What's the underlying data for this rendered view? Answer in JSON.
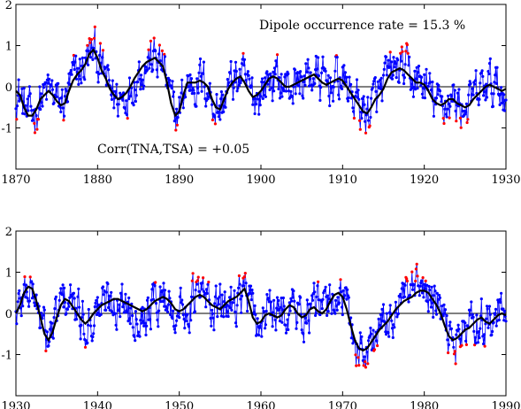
{
  "chart_data": [
    {
      "type": "line",
      "title": "",
      "xlabel": "",
      "ylabel": "",
      "xlim": [
        1870,
        1930
      ],
      "ylim": [
        -2,
        2
      ],
      "x_ticks": [
        1870,
        1880,
        1890,
        1900,
        1910,
        1920,
        1930
      ],
      "y_ticks": [
        -1,
        0,
        1,
        2
      ],
      "zero_line": true,
      "annotations": [
        {
          "text": "Dipole occurrence rate = 15.3 %"
        },
        {
          "text": "Corr(TNA,TSA) = +0.05"
        }
      ],
      "colors": {
        "raw_series": "#0000ff",
        "dipole_points": "#ff0000",
        "smoothed": "#000000"
      },
      "series": [
        {
          "role": "smoothed",
          "x": [
            1870,
            1870.5,
            1871,
            1871.5,
            1872,
            1872.5,
            1873,
            1873.5,
            1874,
            1874.5,
            1875,
            1875.5,
            1876,
            1876.5,
            1877,
            1877.5,
            1878,
            1878.5,
            1879,
            1879.5,
            1880,
            1880.5,
            1881,
            1881.5,
            1882,
            1882.5,
            1883,
            1883.5,
            1884,
            1884.5,
            1885,
            1885.5,
            1886,
            1886.5,
            1887,
            1887.5,
            1888,
            1888.5,
            1889,
            1889.5,
            1890,
            1890.5,
            1891,
            1891.5,
            1892,
            1892.5,
            1893,
            1893.5,
            1894,
            1894.5,
            1895,
            1895.5,
            1896,
            1896.5,
            1897,
            1897.5,
            1898,
            1898.5,
            1899,
            1899.5,
            1900,
            1900.5,
            1901,
            1901.5,
            1902,
            1902.5,
            1903,
            1903.5,
            1904,
            1904.5,
            1905,
            1905.5,
            1906,
            1906.5,
            1907,
            1907.5,
            1908,
            1908.5,
            1909,
            1909.5,
            1910,
            1910.5,
            1911,
            1911.5,
            1912,
            1912.5,
            1913,
            1913.5,
            1914,
            1914.5,
            1915,
            1915.5,
            1916,
            1916.5,
            1917,
            1917.5,
            1918,
            1918.5,
            1919,
            1919.5,
            1920,
            1920.5,
            1921,
            1921.5,
            1922,
            1922.5,
            1923,
            1923.5,
            1924,
            1924.5,
            1925,
            1925.5,
            1926,
            1926.5,
            1927,
            1927.5,
            1928,
            1928.5,
            1929,
            1929.5,
            1930
          ],
          "y": [
            -0.1,
            -0.2,
            -0.5,
            -0.7,
            -0.7,
            -0.55,
            -0.3,
            -0.2,
            -0.1,
            -0.2,
            -0.35,
            -0.45,
            -0.4,
            -0.1,
            0.15,
            0.3,
            0.4,
            0.55,
            0.8,
            0.9,
            0.7,
            0.4,
            0.2,
            -0.05,
            -0.2,
            -0.3,
            -0.25,
            -0.15,
            0.0,
            0.2,
            0.35,
            0.5,
            0.6,
            0.65,
            0.7,
            0.6,
            0.5,
            0.1,
            -0.4,
            -0.7,
            -0.6,
            -0.2,
            0.1,
            0.1,
            0.1,
            0.15,
            0.1,
            0.0,
            -0.3,
            -0.5,
            -0.55,
            -0.3,
            -0.05,
            0.1,
            0.2,
            0.25,
            0.1,
            -0.1,
            -0.25,
            -0.2,
            -0.1,
            0.05,
            0.2,
            0.25,
            0.2,
            0.1,
            0.0,
            0.0,
            0.05,
            0.1,
            0.15,
            0.2,
            0.25,
            0.3,
            0.2,
            0.1,
            0.05,
            0.1,
            0.15,
            0.2,
            0.15,
            0.0,
            -0.15,
            -0.3,
            -0.45,
            -0.6,
            -0.65,
            -0.5,
            -0.3,
            -0.2,
            -0.05,
            0.2,
            0.35,
            0.4,
            0.45,
            0.4,
            0.3,
            0.2,
            0.1,
            0.1,
            0.05,
            -0.1,
            -0.3,
            -0.4,
            -0.45,
            -0.4,
            -0.3,
            -0.3,
            -0.4,
            -0.45,
            -0.5,
            -0.45,
            -0.3,
            -0.2,
            -0.1,
            0.0,
            0.05,
            0.0,
            -0.05,
            -0.1,
            -0.05
          ]
        }
      ]
    },
    {
      "type": "line",
      "title": "",
      "xlabel": "",
      "ylabel": "",
      "xlim": [
        1930,
        1990
      ],
      "ylim": [
        -2,
        2
      ],
      "x_ticks": [
        1930,
        1940,
        1950,
        1960,
        1970,
        1980,
        1990
      ],
      "y_ticks": [
        -1,
        0,
        1,
        2
      ],
      "zero_line": true,
      "annotations": [],
      "colors": {
        "raw_series": "#0000ff",
        "dipole_points": "#ff0000",
        "smoothed": "#000000"
      },
      "series": [
        {
          "role": "smoothed",
          "x": [
            1930,
            1930.5,
            1931,
            1931.5,
            1932,
            1932.5,
            1933,
            1933.5,
            1934,
            1934.5,
            1935,
            1935.5,
            1936,
            1936.5,
            1937,
            1937.5,
            1938,
            1938.5,
            1939,
            1939.5,
            1940,
            1940.5,
            1941,
            1941.5,
            1942,
            1942.5,
            1943,
            1943.5,
            1944,
            1944.5,
            1945,
            1945.5,
            1946,
            1946.5,
            1947,
            1947.5,
            1948,
            1948.5,
            1949,
            1949.5,
            1950,
            1950.5,
            1951,
            1951.5,
            1952,
            1952.5,
            1953,
            1953.5,
            1954,
            1954.5,
            1955,
            1955.5,
            1956,
            1956.5,
            1957,
            1957.5,
            1958,
            1958.5,
            1959,
            1959.5,
            1960,
            1960.5,
            1961,
            1961.5,
            1962,
            1962.5,
            1963,
            1963.5,
            1964,
            1964.5,
            1965,
            1965.5,
            1966,
            1966.5,
            1967,
            1967.5,
            1968,
            1968.5,
            1969,
            1969.5,
            1970,
            1970.5,
            1971,
            1971.5,
            1972,
            1972.5,
            1973,
            1973.5,
            1974,
            1974.5,
            1975,
            1975.5,
            1976,
            1976.5,
            1977,
            1977.5,
            1978,
            1978.5,
            1979,
            1979.5,
            1980,
            1980.5,
            1981,
            1981.5,
            1982,
            1982.5,
            1983,
            1983.5,
            1984,
            1984.5,
            1985,
            1985.5,
            1986,
            1986.5,
            1987,
            1987.5,
            1988,
            1988.5,
            1989,
            1989.5,
            1990
          ],
          "y": [
            0.0,
            0.2,
            0.5,
            0.65,
            0.6,
            0.3,
            -0.1,
            -0.5,
            -0.65,
            -0.45,
            -0.1,
            0.2,
            0.35,
            0.3,
            0.15,
            0.0,
            -0.15,
            -0.25,
            -0.15,
            0.0,
            0.1,
            0.2,
            0.25,
            0.3,
            0.35,
            0.35,
            0.3,
            0.25,
            0.2,
            0.15,
            0.1,
            0.05,
            0.1,
            0.2,
            0.3,
            0.35,
            0.4,
            0.35,
            0.25,
            0.1,
            0.05,
            0.1,
            0.2,
            0.3,
            0.4,
            0.45,
            0.4,
            0.3,
            0.2,
            0.15,
            0.1,
            0.2,
            0.3,
            0.35,
            0.4,
            0.5,
            0.6,
            0.3,
            -0.1,
            -0.25,
            -0.2,
            -0.05,
            0.0,
            -0.05,
            -0.1,
            -0.05,
            0.1,
            0.2,
            0.15,
            0.0,
            -0.1,
            -0.05,
            0.1,
            0.15,
            0.05,
            0.0,
            0.1,
            0.3,
            0.45,
            0.5,
            0.4,
            0.1,
            -0.3,
            -0.65,
            -0.85,
            -0.9,
            -0.85,
            -0.7,
            -0.55,
            -0.4,
            -0.3,
            -0.2,
            -0.05,
            0.1,
            0.2,
            0.3,
            0.35,
            0.4,
            0.5,
            0.55,
            0.55,
            0.5,
            0.35,
            0.2,
            0.0,
            -0.3,
            -0.55,
            -0.65,
            -0.6,
            -0.5,
            -0.4,
            -0.35,
            -0.25,
            -0.15,
            -0.1,
            -0.2,
            -0.25,
            -0.15,
            -0.05,
            0.0,
            -0.05
          ]
        }
      ]
    }
  ]
}
